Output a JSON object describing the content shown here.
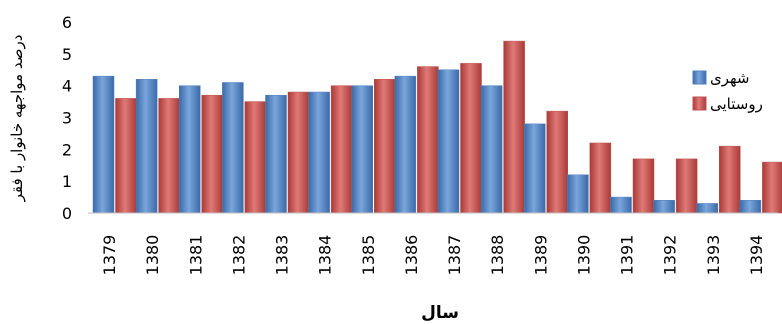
{
  "chart_data": {
    "type": "bar",
    "ylabel": "درصد مواجهه خانوار با فقر",
    "xlabel": "سال",
    "ylim": [
      0,
      6
    ],
    "yticks": [
      0,
      1,
      2,
      3,
      4,
      5,
      6
    ],
    "categories": [
      "1379",
      "1380",
      "1381",
      "1382",
      "1383",
      "1384",
      "1385",
      "1386",
      "1387",
      "1388",
      "1389",
      "1390",
      "1391",
      "1392",
      "1393",
      "1394"
    ],
    "series": [
      {
        "name": "شهری",
        "color": "#4f81bd",
        "values": [
          4.3,
          4.2,
          4.0,
          4.1,
          3.7,
          3.8,
          4.0,
          4.3,
          4.5,
          4.0,
          2.8,
          1.2,
          0.5,
          0.4,
          0.3,
          0.4
        ]
      },
      {
        "name": "روستایی",
        "color": "#c0504d",
        "values": [
          3.6,
          3.6,
          3.7,
          3.5,
          3.8,
          4.0,
          4.2,
          4.6,
          4.7,
          5.4,
          3.2,
          2.2,
          1.7,
          1.7,
          2.1,
          1.6
        ]
      }
    ],
    "grid": false,
    "legend_position": "right"
  }
}
